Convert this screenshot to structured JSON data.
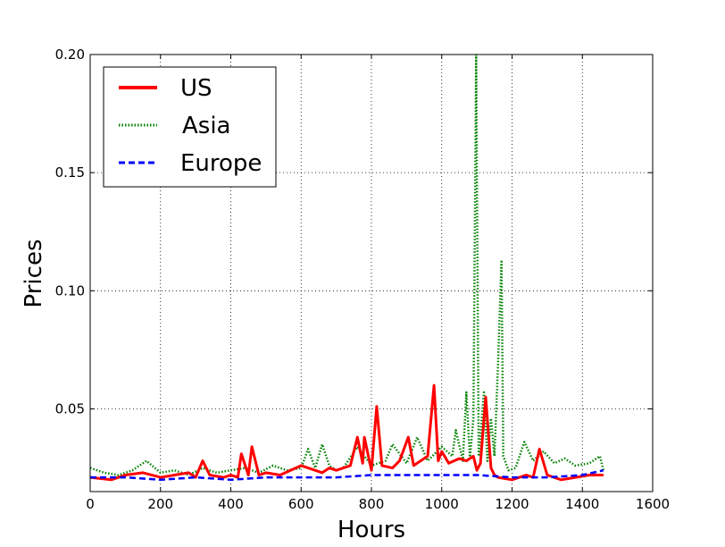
{
  "chart_data": {
    "type": "line",
    "xlabel": "Hours",
    "ylabel": "Prices",
    "xlim": [
      0,
      1600
    ],
    "ylim": [
      0.015,
      0.2
    ],
    "x_ticks": [
      0,
      200,
      400,
      600,
      800,
      1000,
      1200,
      1400,
      1600
    ],
    "x_tick_labels": [
      "0",
      "200",
      "400",
      "600",
      "800",
      "1000",
      "1200",
      "1400",
      "1600"
    ],
    "y_ticks": [
      0.05,
      0.1,
      0.15,
      0.2
    ],
    "y_tick_labels": [
      "0.05",
      "0.10",
      "0.15",
      "0.20"
    ],
    "grid": true,
    "legend_position": "top-left",
    "series": [
      {
        "name": "US",
        "color": "#ff0000",
        "style": "solid",
        "x": [
          0,
          60,
          100,
          150,
          200,
          240,
          280,
          300,
          320,
          340,
          380,
          400,
          420,
          430,
          450,
          460,
          480,
          500,
          540,
          570,
          600,
          640,
          660,
          680,
          700,
          720,
          740,
          760,
          775,
          780,
          800,
          815,
          830,
          860,
          880,
          905,
          920,
          940,
          960,
          978,
          990,
          1000,
          1020,
          1050,
          1070,
          1090,
          1100,
          1110,
          1125,
          1140,
          1150,
          1160,
          1200,
          1240,
          1260,
          1278,
          1300,
          1340,
          1380,
          1420,
          1460
        ],
        "y": [
          0.021,
          0.02,
          0.022,
          0.023,
          0.021,
          0.022,
          0.023,
          0.021,
          0.028,
          0.022,
          0.021,
          0.022,
          0.021,
          0.031,
          0.022,
          0.034,
          0.022,
          0.023,
          0.022,
          0.024,
          0.026,
          0.024,
          0.023,
          0.025,
          0.024,
          0.025,
          0.026,
          0.038,
          0.027,
          0.038,
          0.024,
          0.051,
          0.026,
          0.025,
          0.028,
          0.038,
          0.026,
          0.028,
          0.03,
          0.06,
          0.028,
          0.032,
          0.027,
          0.029,
          0.028,
          0.03,
          0.024,
          0.027,
          0.055,
          0.025,
          0.022,
          0.021,
          0.02,
          0.022,
          0.021,
          0.033,
          0.022,
          0.02,
          0.021,
          0.022,
          0.022
        ]
      },
      {
        "name": "Asia",
        "color": "#008000",
        "style": "dotted",
        "x": [
          0,
          40,
          80,
          120,
          160,
          200,
          240,
          280,
          320,
          360,
          400,
          440,
          480,
          520,
          560,
          600,
          620,
          640,
          660,
          680,
          700,
          720,
          760,
          800,
          840,
          860,
          900,
          930,
          960,
          1000,
          1030,
          1040,
          1060,
          1070,
          1080,
          1090,
          1098,
          1105,
          1120,
          1130,
          1140,
          1150,
          1160,
          1170,
          1175,
          1190,
          1210,
          1235,
          1260,
          1290,
          1320,
          1350,
          1380,
          1420,
          1450,
          1460
        ],
        "y": [
          0.025,
          0.023,
          0.022,
          0.024,
          0.028,
          0.023,
          0.024,
          0.022,
          0.025,
          0.023,
          0.024,
          0.025,
          0.023,
          0.026,
          0.024,
          0.025,
          0.033,
          0.025,
          0.035,
          0.026,
          0.024,
          0.025,
          0.034,
          0.026,
          0.028,
          0.035,
          0.027,
          0.038,
          0.028,
          0.034,
          0.03,
          0.041,
          0.028,
          0.057,
          0.029,
          0.046,
          0.2,
          0.03,
          0.057,
          0.028,
          0.046,
          0.03,
          0.069,
          0.113,
          0.03,
          0.024,
          0.025,
          0.036,
          0.028,
          0.032,
          0.027,
          0.029,
          0.026,
          0.027,
          0.03,
          0.024
        ]
      },
      {
        "name": "Europe",
        "color": "#0000ff",
        "style": "dashed",
        "x": [
          0,
          100,
          200,
          300,
          400,
          500,
          600,
          700,
          800,
          900,
          1000,
          1100,
          1200,
          1300,
          1400,
          1460
        ],
        "y": [
          0.021,
          0.021,
          0.02,
          0.021,
          0.02,
          0.021,
          0.021,
          0.021,
          0.022,
          0.022,
          0.022,
          0.022,
          0.021,
          0.021,
          0.022,
          0.024
        ]
      }
    ]
  }
}
